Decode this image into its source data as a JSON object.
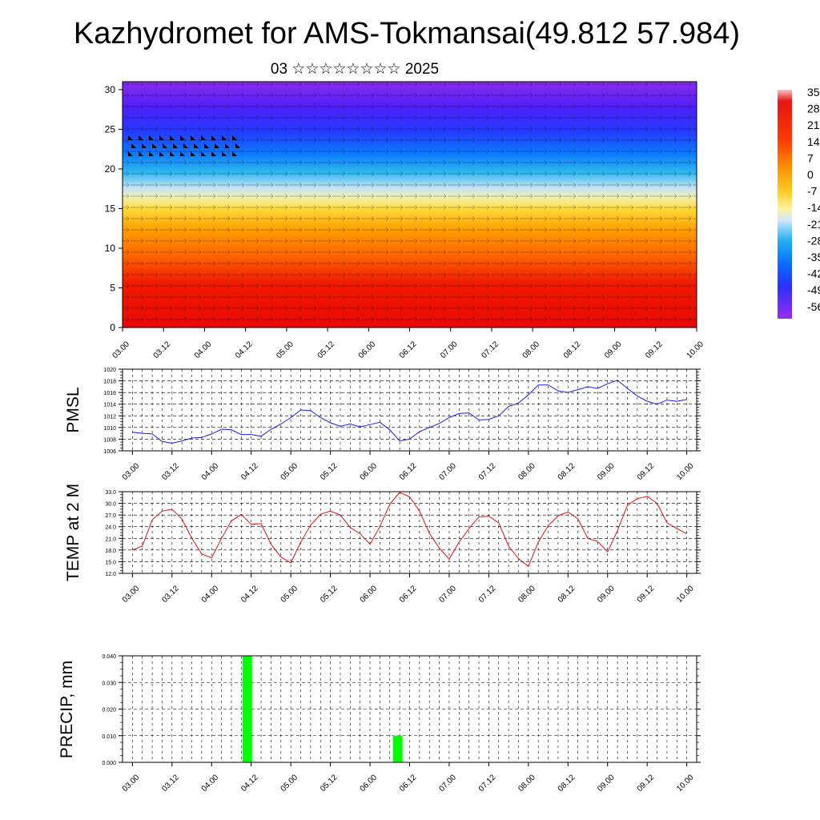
{
  "title": "Kazhydromet for AMS-Tokmansai(49.812 57.984)",
  "subtitle": "03 ☆☆☆☆☆☆☆☆ 2025",
  "time_ticks": [
    "03.00",
    "03.12",
    "04.00",
    "04.12",
    "05.00",
    "05.12",
    "06.00",
    "06.12",
    "07.00",
    "07.12",
    "08.00",
    "08.12",
    "09.00",
    "09.12",
    "10.00"
  ],
  "colorbar": {
    "labels": [
      "35",
      "28",
      "21",
      "14",
      "7",
      "0",
      "-7",
      "-14",
      "-21",
      "-28",
      "-35",
      "-42",
      "-49",
      "-56"
    ],
    "colors": [
      "#f4b4b4",
      "#e81010",
      "#ff3a00",
      "#ff7a00",
      "#ffb800",
      "#ffe23a",
      "#cfe8ff",
      "#00b4f0",
      "#0064ff",
      "#2a2aff",
      "#5a1aff",
      "#9a2aff"
    ]
  },
  "chart_data": [
    {
      "type": "heatmap",
      "name": "vertical-profile",
      "ylabel": "",
      "y_ticks": [
        0,
        5,
        10,
        15,
        20,
        25,
        30
      ],
      "ylim": [
        0,
        31
      ],
      "xlim": [
        0,
        14
      ],
      "note_bands": [
        {
          "y0": 0,
          "y1": 9,
          "value": 21
        },
        {
          "y0": 9,
          "y1": 16,
          "value": 7
        },
        {
          "y0": 16,
          "y1": 19,
          "value": -14
        },
        {
          "y0": 19,
          "y1": 23,
          "value": -28
        },
        {
          "y0": 23,
          "y1": 27,
          "value": -42
        },
        {
          "y0": 27,
          "y1": 31,
          "value": -56
        }
      ]
    },
    {
      "type": "line",
      "name": "pmsl",
      "ylabel": "PMSL",
      "y_ticks": [
        1006,
        1008,
        1010,
        1012,
        1014,
        1016,
        1018,
        1020
      ],
      "ylim": [
        1006,
        1020
      ],
      "xlim": [
        -0.25,
        14.25
      ],
      "color": "#1a1aff",
      "x": [
        0,
        0.25,
        0.5,
        0.75,
        1,
        1.25,
        1.5,
        1.75,
        2,
        2.25,
        2.5,
        2.75,
        3,
        3.25,
        3.5,
        3.75,
        4,
        4.25,
        4.5,
        4.75,
        5,
        5.25,
        5.5,
        5.75,
        6,
        6.25,
        6.5,
        6.75,
        7,
        7.25,
        7.5,
        7.75,
        8,
        8.25,
        8.5,
        8.75,
        9,
        9.25,
        9.5,
        9.75,
        10,
        10.25,
        10.5,
        10.75,
        11,
        11.25,
        11.5,
        11.75,
        12,
        12.25,
        12.5,
        12.75,
        13,
        13.25,
        13.5,
        13.75,
        14
      ],
      "values": [
        1009.2,
        1009.0,
        1008.9,
        1007.6,
        1007.3,
        1007.7,
        1008.2,
        1008.3,
        1008.9,
        1009.7,
        1009.6,
        1008.8,
        1008.8,
        1008.5,
        1009.7,
        1010.6,
        1011.7,
        1013.0,
        1012.9,
        1011.7,
        1010.8,
        1010.2,
        1010.6,
        1010.1,
        1010.5,
        1010.9,
        1009.6,
        1007.7,
        1008.0,
        1009.3,
        1010.0,
        1010.7,
        1011.7,
        1012.4,
        1012.5,
        1011.3,
        1011.4,
        1012.0,
        1013.6,
        1014.2,
        1015.6,
        1017.3,
        1017.3,
        1016.3,
        1016.0,
        1016.5,
        1017.0,
        1016.7,
        1017.5,
        1018.1,
        1016.7,
        1015.4,
        1014.5,
        1014.0,
        1014.7,
        1014.5,
        1014.8
      ]
    },
    {
      "type": "line",
      "name": "temp-2m",
      "ylabel": "TEMP at 2 M",
      "y_ticks": [
        "12.0",
        "15.0",
        "18.0",
        "21.0",
        "24.0",
        "27.0",
        "30.0",
        "33.0"
      ],
      "ylim": [
        12,
        33
      ],
      "xlim": [
        -0.25,
        14.25
      ],
      "color": "#e81010",
      "x": [
        0,
        0.25,
        0.5,
        0.75,
        1,
        1.25,
        1.5,
        1.75,
        2,
        2.25,
        2.5,
        2.75,
        3,
        3.25,
        3.5,
        3.75,
        4,
        4.25,
        4.5,
        4.75,
        5,
        5.25,
        5.5,
        5.75,
        6,
        6.25,
        6.5,
        6.75,
        7,
        7.25,
        7.5,
        7.75,
        8,
        8.25,
        8.5,
        8.75,
        9,
        9.25,
        9.5,
        9.75,
        10,
        10.25,
        10.5,
        10.75,
        11,
        11.25,
        11.5,
        11.75,
        12,
        12.25,
        12.5,
        12.75,
        13,
        13.25,
        13.5,
        13.75,
        14
      ],
      "values": [
        18.0,
        19.0,
        25.8,
        28.0,
        28.5,
        26.0,
        21.0,
        17.0,
        16.0,
        21.0,
        25.5,
        27.2,
        24.6,
        24.8,
        19.5,
        16.2,
        14.7,
        20.0,
        24.4,
        27.2,
        28.0,
        27.0,
        23.8,
        22.2,
        19.5,
        24.0,
        29.8,
        32.8,
        31.7,
        28.0,
        22.3,
        18.5,
        15.7,
        20.0,
        23.5,
        26.5,
        26.7,
        25.0,
        19.0,
        15.8,
        13.8,
        20.0,
        24.3,
        26.8,
        27.8,
        26.0,
        21.0,
        20.2,
        17.5,
        23.0,
        29.5,
        31.2,
        31.8,
        30.0,
        25.0,
        23.5,
        22.2
      ]
    },
    {
      "type": "bar",
      "name": "precip",
      "ylabel": "PRECIP, mm",
      "y_ticks": [
        "0.000",
        "0.010",
        "0.020",
        "0.030",
        "0.040"
      ],
      "ylim": [
        0,
        0.04
      ],
      "xlim": [
        -0.25,
        14.25
      ],
      "color": "#00ff00",
      "bars": [
        {
          "x": 2.9,
          "value": 0.04
        },
        {
          "x": 6.7,
          "value": 0.01
        }
      ]
    }
  ]
}
